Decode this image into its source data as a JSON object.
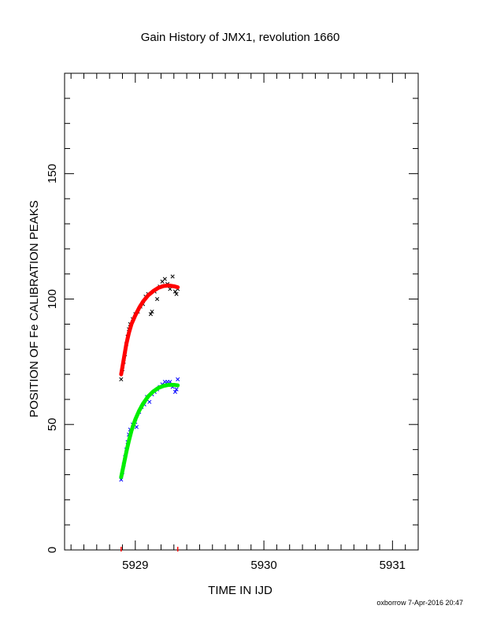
{
  "chart_data": {
    "type": "scatter",
    "title": "Gain History of JMX1, revolution 1660",
    "xlabel": "TIME IN IJD",
    "ylabel": "POSITION OF Fe CALIBRATION PEAKS",
    "xlim": [
      5928.45,
      5931.2
    ],
    "ylim": [
      0,
      190
    ],
    "x_ticks": [
      5929,
      5930,
      5931
    ],
    "x_tick_labels": [
      "5929",
      "5930",
      "5931"
    ],
    "y_ticks": [
      0,
      50,
      100,
      150
    ],
    "y_tick_labels": [
      "0",
      "50",
      "100",
      "150"
    ],
    "grid": false,
    "series": [
      {
        "marker": "x",
        "color": "#000000",
        "points": [
          [
            5928.89,
            68
          ],
          [
            5928.9,
            72
          ],
          [
            5928.91,
            75
          ],
          [
            5928.92,
            78
          ],
          [
            5928.93,
            82
          ],
          [
            5928.94,
            85
          ],
          [
            5928.95,
            88
          ],
          [
            5928.96,
            90
          ],
          [
            5928.98,
            92
          ],
          [
            5929.0,
            94
          ],
          [
            5929.02,
            95
          ],
          [
            5929.04,
            97
          ],
          [
            5929.06,
            98
          ],
          [
            5929.08,
            101
          ],
          [
            5929.1,
            102
          ],
          [
            5929.12,
            94
          ],
          [
            5929.13,
            95
          ],
          [
            5929.15,
            103
          ],
          [
            5929.17,
            100
          ],
          [
            5929.19,
            105
          ],
          [
            5929.21,
            107
          ],
          [
            5929.23,
            108
          ],
          [
            5929.25,
            106
          ],
          [
            5929.27,
            104
          ],
          [
            5929.29,
            109
          ],
          [
            5929.31,
            103
          ],
          [
            5929.32,
            102
          ],
          [
            5929.33,
            104
          ]
        ]
      },
      {
        "marker": "x",
        "color": "#0000ff",
        "points": [
          [
            5928.89,
            28
          ],
          [
            5928.9,
            31
          ],
          [
            5928.91,
            34
          ],
          [
            5928.92,
            37
          ],
          [
            5928.93,
            40
          ],
          [
            5928.94,
            43
          ],
          [
            5928.95,
            46
          ],
          [
            5928.96,
            48
          ],
          [
            5928.98,
            50
          ],
          [
            5929.0,
            51
          ],
          [
            5929.01,
            49
          ],
          [
            5929.03,
            55
          ],
          [
            5929.05,
            57
          ],
          [
            5929.07,
            58
          ],
          [
            5929.09,
            61
          ],
          [
            5929.11,
            59
          ],
          [
            5929.13,
            62
          ],
          [
            5929.15,
            63
          ],
          [
            5929.17,
            64
          ],
          [
            5929.19,
            65
          ],
          [
            5929.21,
            66
          ],
          [
            5929.23,
            67
          ],
          [
            5929.25,
            67
          ],
          [
            5929.27,
            67
          ],
          [
            5929.29,
            65
          ],
          [
            5929.31,
            63
          ],
          [
            5929.32,
            64
          ],
          [
            5929.33,
            68
          ]
        ]
      },
      {
        "marker": "line",
        "color": "#ff0000",
        "points": [
          [
            5928.89,
            70
          ],
          [
            5928.91,
            76
          ],
          [
            5928.93,
            82
          ],
          [
            5928.95,
            86.5
          ],
          [
            5928.97,
            90
          ],
          [
            5929.0,
            93.5
          ],
          [
            5929.03,
            96.5
          ],
          [
            5929.06,
            99
          ],
          [
            5929.1,
            101.5
          ],
          [
            5929.14,
            103.2
          ],
          [
            5929.18,
            104.5
          ],
          [
            5929.22,
            105.2
          ],
          [
            5929.26,
            105.4
          ],
          [
            5929.3,
            105.1
          ],
          [
            5929.33,
            104.7
          ]
        ]
      },
      {
        "marker": "line",
        "color": "#00ee00",
        "points": [
          [
            5928.89,
            29
          ],
          [
            5928.91,
            34
          ],
          [
            5928.93,
            39
          ],
          [
            5928.95,
            43.5
          ],
          [
            5928.97,
            47.5
          ],
          [
            5929.0,
            52
          ],
          [
            5929.03,
            55.5
          ],
          [
            5929.06,
            58.3
          ],
          [
            5929.1,
            61.2
          ],
          [
            5929.14,
            63.2
          ],
          [
            5929.18,
            64.6
          ],
          [
            5929.22,
            65.4
          ],
          [
            5929.26,
            65.8
          ],
          [
            5929.3,
            65.8
          ],
          [
            5929.33,
            65.6
          ]
        ]
      }
    ],
    "red_ticks_x": [
      5928.89,
      5929.33
    ],
    "footer": "oxborrow  7-Apr-2016 20:47"
  }
}
